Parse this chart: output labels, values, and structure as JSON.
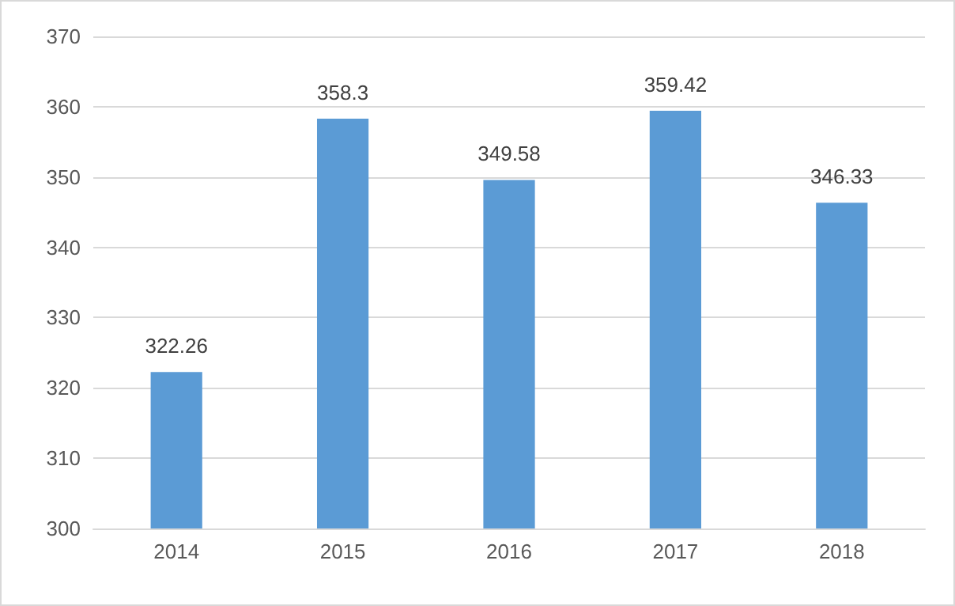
{
  "chart_data": {
    "type": "bar",
    "categories": [
      "2014",
      "2015",
      "2016",
      "2017",
      "2018"
    ],
    "values": [
      322.26,
      358.3,
      349.58,
      359.42,
      346.33
    ],
    "color": "#5b9bd5",
    "ylim": [
      300,
      370
    ],
    "yticks": [
      300,
      310,
      320,
      330,
      340,
      350,
      360,
      370
    ],
    "grid": "y",
    "data_labels": true
  }
}
